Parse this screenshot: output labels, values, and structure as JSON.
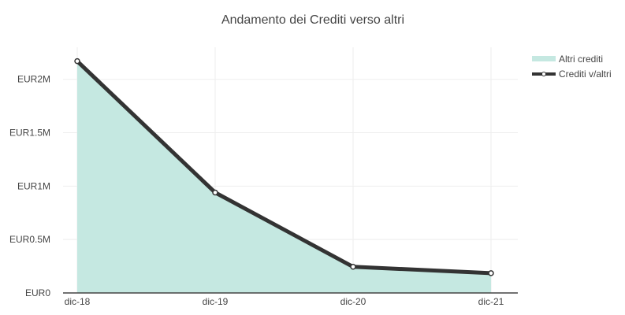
{
  "chart_data": {
    "type": "area",
    "title": "Andamento dei Crediti verso altri",
    "categories": [
      "dic-18",
      "dic-19",
      "dic-20",
      "dic-21"
    ],
    "y_ticks": [
      {
        "value": 0,
        "label": "EUR0"
      },
      {
        "value": 500000,
        "label": "EUR0.5M"
      },
      {
        "value": 1000000,
        "label": "EUR1M"
      },
      {
        "value": 1500000,
        "label": "EUR1.5M"
      },
      {
        "value": 2000000,
        "label": "EUR2M"
      }
    ],
    "ylim": [
      0,
      2300000
    ],
    "grid": true,
    "legend_position": "top-right",
    "series": [
      {
        "name": "Altri crediti",
        "kind": "area",
        "color": "#c5e8e1",
        "values": [
          2170000,
          940000,
          245000,
          185000
        ]
      },
      {
        "name": "Crediti v/altri",
        "kind": "line-markers",
        "color": "#333333",
        "values": [
          2170000,
          940000,
          245000,
          185000
        ]
      }
    ]
  }
}
